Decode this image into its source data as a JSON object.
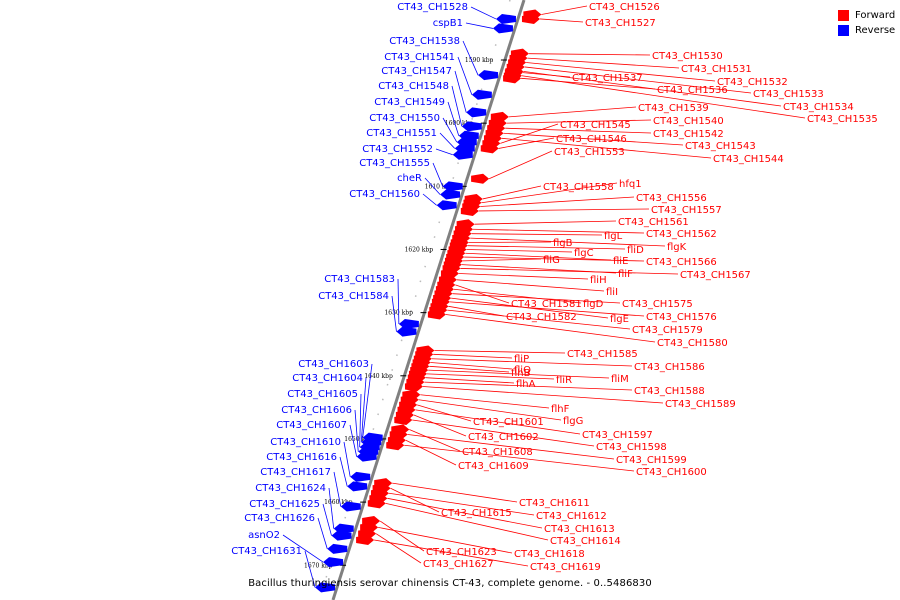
{
  "caption": "Bacillus thuringiensis serovar chinensis CT-43, complete genome. - 0..5486830",
  "legend": [
    {
      "label": "Forward",
      "color": "#ff0000"
    },
    {
      "label": "Reverse",
      "color": "#0000ff"
    }
  ],
  "colors": {
    "forward": "#ff0000",
    "reverse": "#0000ff",
    "axis": "#808080"
  },
  "ticks": [
    {
      "label": "1590 kbp",
      "pos": 1590
    },
    {
      "label": "1600 kbp",
      "pos": 1600
    },
    {
      "label": "1610 kbp",
      "pos": 1610
    },
    {
      "label": "1620 kbp",
      "pos": 1620
    },
    {
      "label": "1630 kbp",
      "pos": 1630
    },
    {
      "label": "1640 kbp",
      "pos": 1640
    },
    {
      "label": "1650 kbp",
      "pos": 1650
    },
    {
      "label": "1660 kbp",
      "pos": 1660
    },
    {
      "label": "1670 kbp",
      "pos": 1670
    }
  ],
  "reverse_genes": [
    {
      "label": "CT43_CH1528",
      "pos": 1583.5
    },
    {
      "label": "cspB1",
      "pos": 1585.0
    },
    {
      "label": "CT43_CH1538",
      "pos": 1592.4
    },
    {
      "label": "CT43_CH1541",
      "pos": 1595.5
    },
    {
      "label": "CT43_CH1547",
      "pos": 1598.3
    },
    {
      "label": "CT43_CH1548",
      "pos": 1600.5
    },
    {
      "label": "CT43_CH1549",
      "pos": 1602.0
    },
    {
      "label": "CT43_CH1550",
      "pos": 1603.0
    },
    {
      "label": "CT43_CH1551",
      "pos": 1604.0
    },
    {
      "label": "CT43_CH1552",
      "pos": 1605.0
    },
    {
      "label": "CT43_CH1555",
      "pos": 1610.0
    },
    {
      "label": "cheR",
      "pos": 1611.3
    },
    {
      "label": "CT43_CH1560",
      "pos": 1613.0
    },
    {
      "label": "CT43_CH1583",
      "pos": 1631.8
    },
    {
      "label": "CT43_CH1584",
      "pos": 1633.0
    },
    {
      "label": "CT43_CH1603",
      "pos": 1649.8
    },
    {
      "label": "CT43_CH1604",
      "pos": 1650.5
    },
    {
      "label": "CT43_CH1605",
      "pos": 1651.3
    },
    {
      "label": "CT43_CH1606",
      "pos": 1652.0
    },
    {
      "label": "CT43_CH1607",
      "pos": 1652.8
    },
    {
      "label": "CT43_CH1610",
      "pos": 1656.0
    },
    {
      "label": "CT43_CH1616",
      "pos": 1657.5
    },
    {
      "label": "CT43_CH1617",
      "pos": 1660.7
    },
    {
      "label": "CT43_CH1624",
      "pos": 1664.2
    },
    {
      "label": "CT43_CH1625",
      "pos": 1665.3
    },
    {
      "label": "CT43_CH1626",
      "pos": 1667.4
    },
    {
      "label": "asnO2",
      "pos": 1669.5
    },
    {
      "label": "CT43_CH1631",
      "pos": 1673.5
    }
  ],
  "forward_genes": [
    {
      "label": "CT43_CH1526",
      "pos": 1582.8
    },
    {
      "label": "CT43_CH1527",
      "pos": 1583.5
    },
    {
      "label": "CT43_CH1530",
      "pos": 1589.0
    },
    {
      "label": "CT43_CH1531",
      "pos": 1589.7
    },
    {
      "label": "CT43_CH1532",
      "pos": 1590.4
    },
    {
      "label": "CT43_CH1533",
      "pos": 1591.1
    },
    {
      "label": "CT43_CH1534",
      "pos": 1591.8
    },
    {
      "label": "CT43_CH1535",
      "pos": 1592.5
    },
    {
      "label": "CT43_CH1537",
      "pos": 1592.0
    },
    {
      "label": "CT43_CH1536",
      "pos": 1592.9
    },
    {
      "label": "CT43_CH1539",
      "pos": 1599.0
    },
    {
      "label": "CT43_CH1540",
      "pos": 1600.0
    },
    {
      "label": "CT43_CH1542",
      "pos": 1600.8
    },
    {
      "label": "CT43_CH1543",
      "pos": 1601.6
    },
    {
      "label": "CT43_CH1544",
      "pos": 1602.4
    },
    {
      "label": "CT43_CH1545",
      "pos": 1603.2
    },
    {
      "label": "CT43_CH1546",
      "pos": 1604.0
    },
    {
      "label": "CT43_CH1553",
      "pos": 1608.8
    },
    {
      "label": "CT43_CH1558",
      "pos": 1612.0
    },
    {
      "label": "hfq1",
      "pos": 1612.6
    },
    {
      "label": "CT43_CH1556",
      "pos": 1613.2
    },
    {
      "label": "CT43_CH1557",
      "pos": 1613.9
    },
    {
      "label": "CT43_CH1561",
      "pos": 1616.0
    },
    {
      "label": "CT43_CH1562",
      "pos": 1616.8
    },
    {
      "label": "flgL",
      "pos": 1617.5
    },
    {
      "label": "flgK",
      "pos": 1618.2
    },
    {
      "label": "flgB",
      "pos": 1618.9
    },
    {
      "label": "fliD",
      "pos": 1619.4
    },
    {
      "label": "flgC",
      "pos": 1620.0
    },
    {
      "label": "fliE",
      "pos": 1620.6
    },
    {
      "label": "CT43_CH1566",
      "pos": 1621.2
    },
    {
      "label": "fliG",
      "pos": 1621.8
    },
    {
      "label": "fliF",
      "pos": 1622.4
    },
    {
      "label": "CT43_CH1567",
      "pos": 1623.0
    },
    {
      "label": "fliH",
      "pos": 1623.8
    },
    {
      "label": "fliI",
      "pos": 1624.8
    },
    {
      "label": "CT43_CH1581",
      "pos": 1625.6
    },
    {
      "label": "flgD",
      "pos": 1626.3
    },
    {
      "label": "CT43_CH1575",
      "pos": 1627.0
    },
    {
      "label": "flgE",
      "pos": 1627.7
    },
    {
      "label": "CT43_CH1576",
      "pos": 1628.3
    },
    {
      "label": "CT43_CH1582",
      "pos": 1629.0
    },
    {
      "label": "CT43_CH1579",
      "pos": 1629.6
    },
    {
      "label": "CT43_CH1580",
      "pos": 1630.3
    },
    {
      "label": "CT43_CH1585",
      "pos": 1636.0
    },
    {
      "label": "fliP",
      "pos": 1636.6
    },
    {
      "label": "CT43_CH1586",
      "pos": 1637.3
    },
    {
      "label": "fliQ",
      "pos": 1637.9
    },
    {
      "label": "flhB",
      "pos": 1638.5
    },
    {
      "label": "fliM",
      "pos": 1639.1
    },
    {
      "label": "fliR",
      "pos": 1639.7
    },
    {
      "label": "flhA",
      "pos": 1640.3
    },
    {
      "label": "CT43_CH1588",
      "pos": 1641.0
    },
    {
      "label": "CT43_CH1589",
      "pos": 1641.7
    },
    {
      "label": "flhF",
      "pos": 1643.0
    },
    {
      "label": "flgG",
      "pos": 1643.8
    },
    {
      "label": "CT43_CH1601",
      "pos": 1644.6
    },
    {
      "label": "CT43_CH1597",
      "pos": 1645.4
    },
    {
      "label": "CT43_CH1602",
      "pos": 1646.2
    },
    {
      "label": "CT43_CH1598",
      "pos": 1647.0
    },
    {
      "label": "CT43_CH1608",
      "pos": 1648.5
    },
    {
      "label": "CT43_CH1599",
      "pos": 1649.3
    },
    {
      "label": "CT43_CH1609",
      "pos": 1650.2
    },
    {
      "label": "CT43_CH1600",
      "pos": 1651.0
    },
    {
      "label": "CT43_CH1611",
      "pos": 1657.0
    },
    {
      "label": "CT43_CH1615",
      "pos": 1657.8
    },
    {
      "label": "CT43_CH1612",
      "pos": 1658.6
    },
    {
      "label": "CT43_CH1613",
      "pos": 1659.4
    },
    {
      "label": "CT43_CH1614",
      "pos": 1660.2
    },
    {
      "label": "CT43_CH1623",
      "pos": 1663.0
    },
    {
      "label": "CT43_CH1618",
      "pos": 1664.0
    },
    {
      "label": "CT43_CH1627",
      "pos": 1665.0
    },
    {
      "label": "CT43_CH1619",
      "pos": 1666.0
    }
  ]
}
